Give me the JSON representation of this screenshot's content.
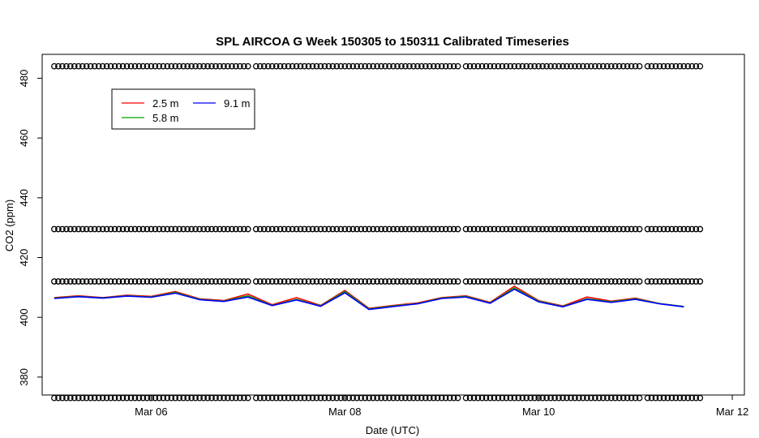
{
  "chart_data": {
    "type": "line",
    "title": "SPL AIRCOA G  Week 150305 to 150311  Calibrated Timeseries",
    "xlabel": "Date (UTC)",
    "ylabel": "CO2 (ppm)",
    "x_ticks": [
      "Mar 06",
      "Mar 08",
      "Mar 10",
      "Mar 12"
    ],
    "y_ticks": [
      "380",
      "400",
      "420",
      "440",
      "460",
      "480"
    ],
    "xlim": [
      "2015-03-04T21:00",
      "2015-03-12T03:00"
    ],
    "ylim": [
      374,
      488
    ],
    "grid": false,
    "legend_position": "top-left",
    "legend": [
      {
        "label": "2.5 m",
        "color": "#ff0000"
      },
      {
        "label": "5.8 m",
        "color": "#00a000"
      },
      {
        "label": "9.1 m",
        "color": "#0000ff"
      }
    ],
    "series": [
      {
        "name": "2.5 m",
        "color": "#ff0000",
        "x": [
          "2015-03-05T00:00",
          "2015-03-05T06:00",
          "2015-03-05T12:00",
          "2015-03-05T18:00",
          "2015-03-06T00:00",
          "2015-03-06T06:00",
          "2015-03-06T12:00",
          "2015-03-06T18:00",
          "2015-03-07T00:00",
          "2015-03-07T06:00",
          "2015-03-07T12:00",
          "2015-03-07T18:00",
          "2015-03-08T00:00",
          "2015-03-08T06:00",
          "2015-03-08T12:00",
          "2015-03-08T18:00",
          "2015-03-09T00:00",
          "2015-03-09T06:00",
          "2015-03-09T12:00",
          "2015-03-09T18:00",
          "2015-03-10T00:00",
          "2015-03-10T06:00",
          "2015-03-10T12:00",
          "2015-03-10T18:00",
          "2015-03-11T00:00",
          "2015-03-11T06:00",
          "2015-03-11T12:00"
        ],
        "y": [
          406.6,
          407.2,
          406.6,
          407.4,
          407.0,
          408.6,
          406.2,
          405.6,
          407.8,
          404.2,
          406.6,
          404.0,
          409.0,
          403.0,
          404.0,
          404.8,
          406.6,
          407.2,
          405.0,
          410.4,
          405.6,
          403.8,
          406.8,
          405.4,
          406.4,
          404.6,
          403.6
        ]
      },
      {
        "name": "5.8 m",
        "color": "#00a000",
        "x": [
          "2015-03-05T00:00",
          "2015-03-05T06:00",
          "2015-03-05T12:00",
          "2015-03-05T18:00",
          "2015-03-06T00:00",
          "2015-03-06T06:00",
          "2015-03-06T12:00",
          "2015-03-06T18:00",
          "2015-03-07T00:00",
          "2015-03-07T06:00",
          "2015-03-07T12:00",
          "2015-03-07T18:00",
          "2015-03-08T00:00",
          "2015-03-08T06:00",
          "2015-03-08T12:00",
          "2015-03-08T18:00",
          "2015-03-09T00:00",
          "2015-03-09T06:00",
          "2015-03-09T12:00",
          "2015-03-09T18:00",
          "2015-03-10T00:00",
          "2015-03-10T06:00",
          "2015-03-10T12:00",
          "2015-03-10T18:00",
          "2015-03-11T00:00",
          "2015-03-11T06:00",
          "2015-03-11T12:00"
        ],
        "y": [
          406.4,
          407.0,
          406.5,
          407.2,
          406.8,
          408.3,
          406.0,
          405.4,
          407.2,
          404.0,
          406.0,
          403.8,
          408.6,
          402.8,
          403.8,
          404.6,
          406.4,
          407.0,
          404.8,
          409.8,
          405.4,
          403.6,
          406.2,
          405.2,
          406.2,
          404.6,
          403.6
        ]
      },
      {
        "name": "9.1 m",
        "color": "#0000ff",
        "x": [
          "2015-03-05T00:00",
          "2015-03-05T06:00",
          "2015-03-05T12:00",
          "2015-03-05T18:00",
          "2015-03-06T00:00",
          "2015-03-06T06:00",
          "2015-03-06T12:00",
          "2015-03-06T18:00",
          "2015-03-07T00:00",
          "2015-03-07T06:00",
          "2015-03-07T12:00",
          "2015-03-07T18:00",
          "2015-03-08T00:00",
          "2015-03-08T06:00",
          "2015-03-08T12:00",
          "2015-03-08T18:00",
          "2015-03-09T00:00",
          "2015-03-09T06:00",
          "2015-03-09T12:00",
          "2015-03-09T18:00",
          "2015-03-10T00:00",
          "2015-03-10T06:00",
          "2015-03-10T12:00",
          "2015-03-10T18:00",
          "2015-03-11T00:00",
          "2015-03-11T06:00",
          "2015-03-11T12:00"
        ],
        "y": [
          406.3,
          406.9,
          406.4,
          407.1,
          406.7,
          408.1,
          405.9,
          405.3,
          406.8,
          403.9,
          405.8,
          403.7,
          408.2,
          402.6,
          403.6,
          404.5,
          406.3,
          406.8,
          404.7,
          409.4,
          405.2,
          403.5,
          406.0,
          405.0,
          406.0,
          404.5,
          403.5
        ]
      }
    ],
    "marker_rows": {
      "marker": "o",
      "color": "#000000",
      "start": "2015-03-05T00:00",
      "end": "2015-03-11T16:30",
      "y_levels": [
        373.0,
        412.0,
        429.5,
        484.0
      ]
    }
  }
}
